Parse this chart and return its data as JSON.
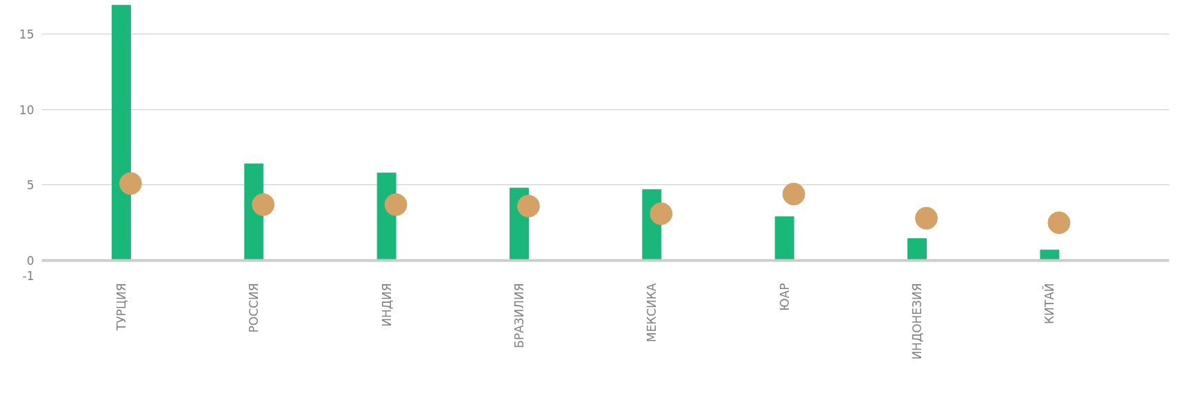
{
  "chart_data": {
    "type": "bar",
    "categories": [
      "ТУРЦИЯ",
      "РОССИЯ",
      "ИНДИЯ",
      "БРАЗИЛИЯ",
      "МЕКСИКА",
      "ЮАР",
      "ИНДОНЕЗИЯ",
      "КИТАЙ"
    ],
    "series": [
      {
        "color": "#1ab77a",
        "values": [
          16.9,
          6.4,
          5.8,
          4.8,
          4.7,
          2.9,
          1.45,
          0.7
        ]
      },
      {
        "type": "scatter",
        "color": "#d4a264",
        "marker": "circle",
        "values": [
          5.1,
          3.7,
          3.7,
          3.6,
          3.1,
          4.4,
          2.8,
          2.5
        ]
      }
    ],
    "ylim": [
      -1,
      17
    ],
    "yticks": [
      -1,
      0,
      5,
      10,
      15
    ],
    "grid": "y"
  }
}
